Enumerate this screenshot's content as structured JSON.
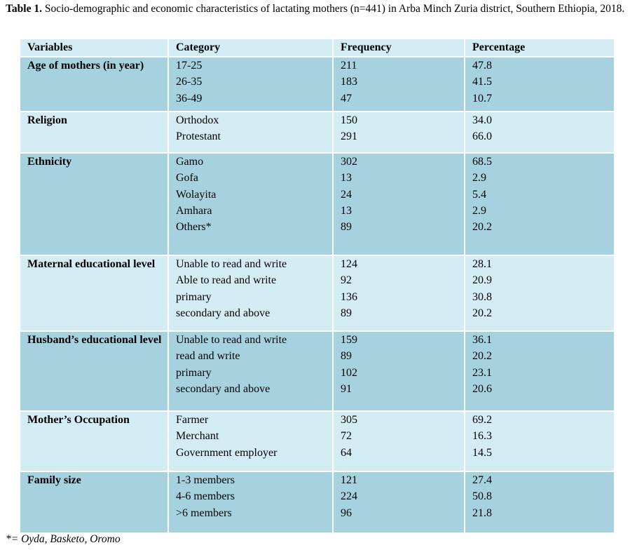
{
  "caption": {
    "label": "Table 1.",
    "text": "Socio-demographic and economic characteristics of lactating mothers (n=441) in Arba Minch Zuria district, Southern Ethiopia, 2018."
  },
  "table": {
    "headers": [
      "Variables",
      "Category",
      "Frequency",
      "Percentage"
    ],
    "groups": [
      {
        "variable": "Age of mothers (in year)",
        "rows": [
          {
            "category": "17-25",
            "frequency": "211",
            "percentage": "47.8"
          },
          {
            "category": "26-35",
            "frequency": "183",
            "percentage": "41.5"
          },
          {
            "category": "36-49",
            "frequency": "47",
            "percentage": "10.7"
          }
        ]
      },
      {
        "variable": "Religion",
        "rows": [
          {
            "category": "Orthodox",
            "frequency": "150",
            "percentage": "34.0"
          },
          {
            "category": "Protestant",
            "frequency": "291",
            "percentage": "66.0"
          }
        ]
      },
      {
        "variable": "Ethnicity",
        "rows": [
          {
            "category": "Gamo",
            "frequency": "302",
            "percentage": "68.5"
          },
          {
            "category": "Gofa",
            "frequency": "13",
            "percentage": "2.9"
          },
          {
            "category": "Wolayita",
            "frequency": "24",
            "percentage": "5.4"
          },
          {
            "category": "Amhara",
            "frequency": "13",
            "percentage": "2.9"
          },
          {
            "category": "Others*",
            "frequency": "89",
            "percentage": "20.2"
          }
        ]
      },
      {
        "variable": "Maternal educational level",
        "rows": [
          {
            "category": "Unable to read and write",
            "frequency": "124",
            "percentage": "28.1"
          },
          {
            "category": "Able to read and write",
            "frequency": "92",
            "percentage": "20.9"
          },
          {
            "category": "primary",
            "frequency": "136",
            "percentage": "30.8"
          },
          {
            "category": "secondary and above",
            "frequency": "89",
            "percentage": "20.2"
          }
        ]
      },
      {
        "variable": "Husband’s educational level",
        "rows": [
          {
            "category": "Unable to read and write",
            "frequency": "159",
            "percentage": "36.1"
          },
          {
            "category": "read and write",
            "frequency": "89",
            "percentage": "20.2"
          },
          {
            "category": "primary",
            "frequency": "102",
            "percentage": "23.1"
          },
          {
            "category": "secondary and above",
            "frequency": "91",
            "percentage": "20.6"
          }
        ]
      },
      {
        "variable": "Mother’s Occupation",
        "rows": [
          {
            "category": "Farmer",
            "frequency": "305",
            "percentage": "69.2"
          },
          {
            "category": "Merchant",
            "frequency": "72",
            "percentage": "16.3"
          },
          {
            "category": "Government employer",
            "frequency": "64",
            "percentage": "14.5"
          }
        ]
      },
      {
        "variable": "Family size",
        "rows": [
          {
            "category": "1-3 members",
            "frequency": "121",
            "percentage": "27.4"
          },
          {
            "category": "4-6 members",
            "frequency": "224",
            "percentage": "50.8"
          },
          {
            "category": ">6 members",
            "frequency": "96",
            "percentage": "21.8"
          }
        ]
      }
    ]
  },
  "footnote": "*= Oyda, Basketo, Oromo",
  "colors": {
    "row_dark": "#a6d2e0",
    "row_light": "#d4ecf4",
    "border": "#ffffff"
  }
}
